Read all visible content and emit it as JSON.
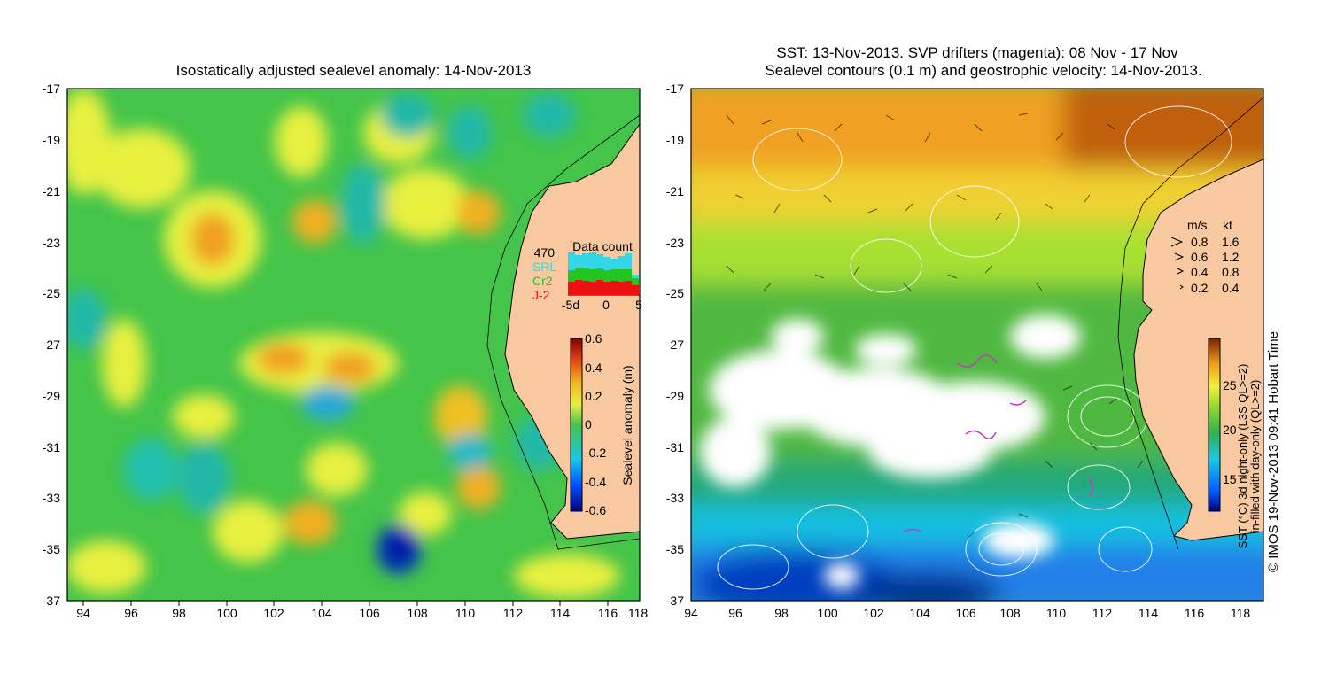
{
  "left_map": {
    "title": "Isostatically adjusted sealevel anomaly: 14-Nov-2013",
    "x_ticks": [
      "94",
      "96",
      "98",
      "100",
      "102",
      "104",
      "106",
      "108",
      "110",
      "112",
      "114",
      "116",
      "118"
    ],
    "y_ticks": [
      "-17",
      "-19",
      "-21",
      "-23",
      "-25",
      "-27",
      "-29",
      "-31",
      "-33",
      "-35",
      "-37"
    ],
    "colorbar": {
      "label": "Sealevel anomaly (m)",
      "ticks": [
        "0.6",
        "0.4",
        "0.2",
        "0",
        "-0.2",
        "-0.4",
        "-0.6"
      ]
    },
    "data_count": {
      "title": "Data count",
      "max_label": "470",
      "series": [
        "SRL",
        "Cr2",
        "J-2"
      ],
      "series_colors": [
        "#33d6e6",
        "#22c522",
        "#ee1111"
      ],
      "x_ticks": [
        "-5d",
        "0",
        "5"
      ]
    },
    "colors": {
      "land": "#f8c9a0",
      "ocean_base": "#44c44a"
    }
  },
  "right_map": {
    "title_line1": "SST: 13-Nov-2013. SVP drifters (magenta): 08 Nov - 17 Nov",
    "title_line2": "Sealevel contours (0.1 m) and geostrophic velocity: 14-Nov-2013.",
    "x_ticks": [
      "94",
      "96",
      "98",
      "100",
      "102",
      "104",
      "106",
      "108",
      "110",
      "112",
      "114",
      "116",
      "118"
    ],
    "y_ticks": [
      "-17",
      "-19",
      "-21",
      "-23",
      "-25",
      "-27",
      "-29",
      "-31",
      "-33",
      "-35",
      "-37"
    ],
    "speed_legend": {
      "header_ms": "m/s",
      "header_kt": "kt",
      "rows": [
        {
          "ms": "0.8",
          "kt": "1.6"
        },
        {
          "ms": "0.6",
          "kt": "1.2"
        },
        {
          "ms": "0.4",
          "kt": "0.8"
        },
        {
          "ms": "0.2",
          "kt": "0.4"
        }
      ]
    },
    "colorbar": {
      "label_line1": "SST (°C) 3d night-only (L3S QL>=2)",
      "label_line2": "in-filled with day-only (QL>=2)",
      "ticks": [
        "25",
        "20",
        "15"
      ]
    },
    "credit": "© IMOS 19-Nov-2013 09:41 Hobart Time",
    "colors": {
      "land": "#f8c9a0",
      "drifters": "#cc33cc"
    }
  }
}
